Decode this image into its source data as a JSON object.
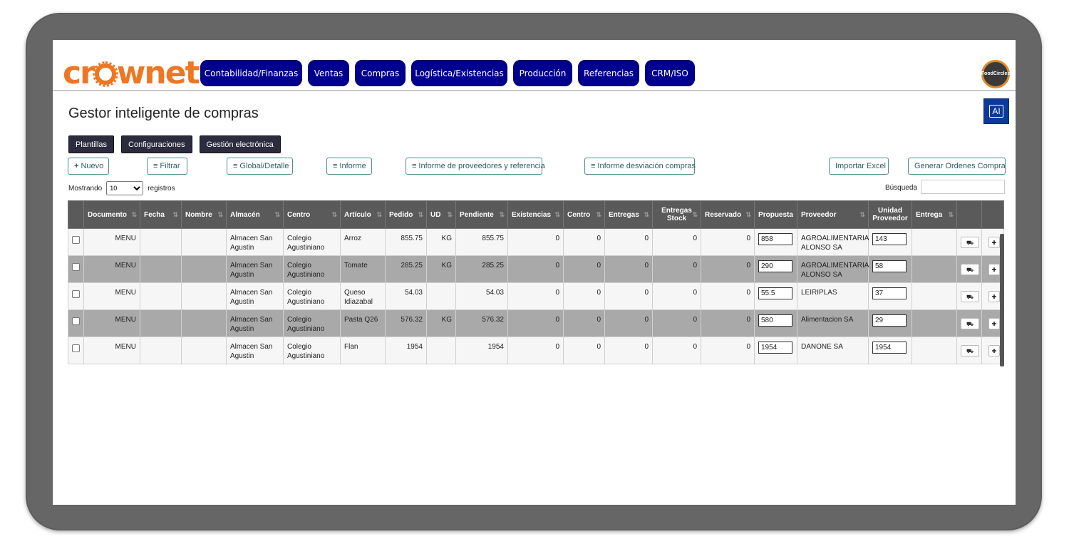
{
  "brand": {
    "logo_text_1": "cr",
    "logo_text_2": "wnet",
    "badge_text": "FoodCircles"
  },
  "nav": [
    "Contabilidad/Finanzas",
    "Ventas",
    "Compras",
    "Logística/Existencias",
    "Producción",
    "Referencias",
    "CRM/ISO"
  ],
  "page": {
    "title": "Gestor inteligente de compras",
    "ai_label": "AI"
  },
  "tabs": [
    "Plantillas",
    "Configuraciones",
    "Gestión electrónica"
  ],
  "toolbar": {
    "nuevo": "Nuevo",
    "filtrar": "Filtrar",
    "global": "Global/Detalle",
    "informe": "Informe",
    "informe_prov": "Informe de proveedores y referencia",
    "informe_desv": "Informe desviación compras",
    "importar": "Importar Excel",
    "generar": "Generar Ordenes Compra"
  },
  "list": {
    "showing_label": "Mostrando",
    "page_size": "10",
    "records_label": "registros",
    "search_label": "Búsqueda"
  },
  "columns": [
    "",
    "Documento",
    "Fecha",
    "Nombre",
    "Almacén",
    "Centro",
    "Artículo",
    "Pedido",
    "UD",
    "Pendiente",
    "Existencias",
    "Centro",
    "Entregas",
    "Entregas Stock",
    "Reservado",
    "Propuesta",
    "Proveedor",
    "Unidad Proveedor",
    "Entrega",
    "",
    ""
  ],
  "rows": [
    {
      "documento": "MENU",
      "fecha": "",
      "nombre": "",
      "almacen": "Almacen San Agustin",
      "centro": "Colegio Agustiniano",
      "articulo": "Arroz",
      "pedido": "855.75",
      "ud": "KG",
      "pendiente": "855.75",
      "existencias": "0",
      "centro_qty": "0",
      "entregas": "0",
      "entregas_stock": "0",
      "reservado": "0",
      "propuesta": "858",
      "proveedor": "AGROALIMENTARIA ALONSO SA",
      "unidad_proveedor": "143",
      "entrega": ""
    },
    {
      "documento": "MENU",
      "fecha": "",
      "nombre": "",
      "almacen": "Almacen San Agustin",
      "centro": "Colegio Agustiniano",
      "articulo": "Tomate",
      "pedido": "285.25",
      "ud": "KG",
      "pendiente": "285.25",
      "existencias": "0",
      "centro_qty": "0",
      "entregas": "0",
      "entregas_stock": "0",
      "reservado": "0",
      "propuesta": "290",
      "proveedor": "AGROALIMENTARIA ALONSO SA",
      "unidad_proveedor": "58",
      "entrega": ""
    },
    {
      "documento": "MENU",
      "fecha": "",
      "nombre": "",
      "almacen": "Almacen San Agustin",
      "centro": "Colegio Agustiniano",
      "articulo": "Queso Idiazabal",
      "pedido": "54.03",
      "ud": "",
      "pendiente": "54.03",
      "existencias": "0",
      "centro_qty": "0",
      "entregas": "0",
      "entregas_stock": "0",
      "reservado": "0",
      "propuesta": "55.5",
      "proveedor": "LEIRIPLAS",
      "unidad_proveedor": "37",
      "entrega": ""
    },
    {
      "documento": "MENU",
      "fecha": "",
      "nombre": "",
      "almacen": "Almacen San Agustin",
      "centro": "Colegio Agustiniano",
      "articulo": "Pasta Q26",
      "pedido": "576.32",
      "ud": "KG",
      "pendiente": "576.32",
      "existencias": "0",
      "centro_qty": "0",
      "entregas": "0",
      "entregas_stock": "0",
      "reservado": "0",
      "propuesta": "580",
      "proveedor": "Alimentacion SA",
      "unidad_proveedor": "29",
      "entrega": ""
    },
    {
      "documento": "MENU",
      "fecha": "",
      "nombre": "",
      "almacen": "Almacen San Agustin",
      "centro": "Colegio Agustiniano",
      "articulo": "Flan",
      "pedido": "1954",
      "ud": "",
      "pendiente": "1954",
      "existencias": "0",
      "centro_qty": "0",
      "entregas": "0",
      "entregas_stock": "0",
      "reservado": "0",
      "propuesta": "1954",
      "proveedor": "DANONE SA",
      "unidad_proveedor": "1954",
      "entrega": ""
    }
  ],
  "colors": {
    "nav_bg": "#00008f",
    "logo_orange": "#ef7622",
    "header_dark": "#5a5a5a",
    "tab_bg": "#2d2b3e"
  }
}
